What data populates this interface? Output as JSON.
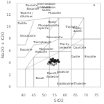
{
  "chart_data": {
    "type": "scatter",
    "xlabel": "SiO2",
    "ylabel": "Na2O + K2O",
    "xlim": [
      37,
      77
    ],
    "ylim": [
      0,
      14
    ],
    "xticks": [
      40,
      45,
      50,
      55,
      60,
      65,
      70,
      75
    ],
    "yticks": [
      0,
      2,
      4,
      6,
      8,
      10,
      12,
      14
    ],
    "series": [
      {
        "type": "line",
        "color": "#888888",
        "x": [
          37,
          77,
          null,
          37,
          37,
          null,
          77,
          77,
          null,
          37,
          77,
          null,
          41,
          41,
          null,
          45,
          45,
          null,
          52,
          52,
          null,
          52.5,
          52.5,
          null,
          57,
          57,
          null,
          63,
          63,
          null,
          63,
          63,
          null,
          69,
          69,
          null,
          69,
          69,
          null,
          77,
          77,
          null,
          37,
          41,
          null,
          41,
          45,
          null,
          45,
          52,
          null,
          52,
          57,
          null,
          57,
          63,
          null,
          63,
          69,
          null,
          69,
          77,
          null,
          45,
          52,
          null,
          52,
          52.5,
          null,
          52.5,
          57,
          null,
          57,
          63,
          null,
          63,
          69,
          null,
          52.5,
          57,
          null,
          57,
          63,
          null,
          63,
          69,
          null,
          69,
          77,
          null,
          57,
          63,
          null,
          63,
          69,
          null,
          52.5,
          57,
          null,
          45,
          52.5,
          null,
          41,
          45,
          null,
          41,
          45,
          null,
          41,
          45,
          null,
          41,
          52.5,
          null,
          37,
          41,
          null,
          37,
          41,
          null,
          37,
          41,
          null,
          45,
          52.5,
          null,
          52.5,
          57,
          null,
          63,
          69
        ],
        "values": [
          0,
          0,
          null,
          0,
          14,
          null,
          0,
          14,
          null,
          14,
          14,
          null,
          0,
          3,
          null,
          0,
          5,
          null,
          0,
          2,
          null,
          2,
          11.5,
          null,
          0,
          11.5,
          null,
          0,
          7,
          null,
          7,
          11.5,
          null,
          0,
          8,
          null,
          8,
          11.5,
          null,
          0,
          14,
          null,
          3,
          3,
          null,
          3,
          3,
          null,
          3,
          3,
          null,
          3,
          3,
          null,
          3,
          3,
          null,
          3,
          3,
          null,
          3,
          3,
          null,
          5,
          5,
          null,
          5,
          5,
          null,
          5.9,
          5.9,
          null,
          5.9,
          5.9,
          null,
          7,
          7,
          null,
          7.3,
          8,
          null,
          8,
          8,
          null,
          8,
          8,
          null,
          8,
          8,
          null,
          11.5,
          11.5,
          null,
          11.5,
          11.5,
          null,
          9.4,
          11.5,
          null,
          7,
          7.3,
          null,
          3,
          5,
          null,
          5,
          7,
          null,
          7,
          11,
          null,
          11,
          11.5,
          null,
          11,
          11,
          null,
          7,
          7,
          null,
          5,
          5,
          null,
          5,
          7.3,
          null,
          11.5,
          11.5,
          null,
          8,
          11.5
        ]
      },
      {
        "type": "line",
        "color": "#aaaaaa",
        "x": [
          41,
          52.5,
          69,
          77
        ],
        "values": [
          3,
          5,
          8,
          8
        ]
      },
      {
        "type": "scatter",
        "color": "#111111",
        "marker": "square",
        "x": [
          52.5,
          53.0,
          53.5,
          54.0,
          54.5,
          55.0,
          55.5,
          56.0,
          56.5,
          57.0,
          53.2,
          54.2,
          55.2
        ],
        "values": [
          4.2,
          4.1,
          4.3,
          4.4,
          4.3,
          4.2,
          4.4,
          4.3,
          4.5,
          4.2,
          4.6,
          4.7,
          4.5
        ]
      },
      {
        "type": "scatter",
        "color": "#111111",
        "marker": "open_square",
        "x": [
          52.0,
          52.8,
          53.5,
          54.5,
          55.5
        ],
        "values": [
          3.9,
          4.0,
          3.8,
          3.7,
          3.9
        ]
      }
    ],
    "annotations": [
      {
        "text": "Basanite",
        "x": 44.5,
        "y": 13.0
      },
      {
        "text": "Intermediate\nfoidite",
        "x": 51,
        "y": 13.0
      },
      {
        "text": "Phonolite",
        "x": 55,
        "y": 12.3
      },
      {
        "text": "Trachyte",
        "x": 63,
        "y": 10.0
      },
      {
        "text": "Trachy-\ndacite",
        "x": 66,
        "y": 9.5
      },
      {
        "text": "Phono-\ntephrite",
        "x": 49.5,
        "y": 10.0
      },
      {
        "text": "Tephri-\nphonolite",
        "x": 54,
        "y": 10.5
      },
      {
        "text": "Benmoreite",
        "x": 55,
        "y": 8.3
      },
      {
        "text": "Trachy-\nandesite",
        "x": 60,
        "y": 6.8
      },
      {
        "text": "Mugearite",
        "x": 51,
        "y": 6.3
      },
      {
        "text": "Hawaiite",
        "x": 48.5,
        "y": 5.8
      },
      {
        "text": "Trachybasalt",
        "x": 49,
        "y": 7.5
      },
      {
        "text": "Basalt",
        "x": 48,
        "y": 1.5
      },
      {
        "text": "Basaltic\nAndesite",
        "x": 54,
        "y": 2.0
      },
      {
        "text": "Andesite",
        "x": 59,
        "y": 2.5
      },
      {
        "text": "Dacite",
        "x": 65,
        "y": 5.0
      },
      {
        "text": "Rhyolite",
        "x": 72,
        "y": 5.0
      },
      {
        "text": "Quartzite",
        "x": 67,
        "y": 6.5
      },
      {
        "text": "SubAlkaline/Tholeiite",
        "x": 63,
        "y": 0.5
      },
      {
        "text": "Foidite",
        "x": 39.5,
        "y": 10.5
      },
      {
        "text": "Basanite",
        "x": 44,
        "y": 13.5
      },
      {
        "text": "Intermediate\nfoidite",
        "x": 51,
        "y": 13.5
      },
      {
        "text": "A",
        "x": 74,
        "y": 13.5
      }
    ],
    "left_annotations": [
      {
        "text": "Tephrite /\nAlkalines",
        "x": 38.5,
        "y": 12.0
      },
      {
        "text": "Shoshonite",
        "x": 38.5,
        "y": 8.5
      },
      {
        "text": "Basanite",
        "x": 38.5,
        "y": 6.2
      }
    ]
  }
}
